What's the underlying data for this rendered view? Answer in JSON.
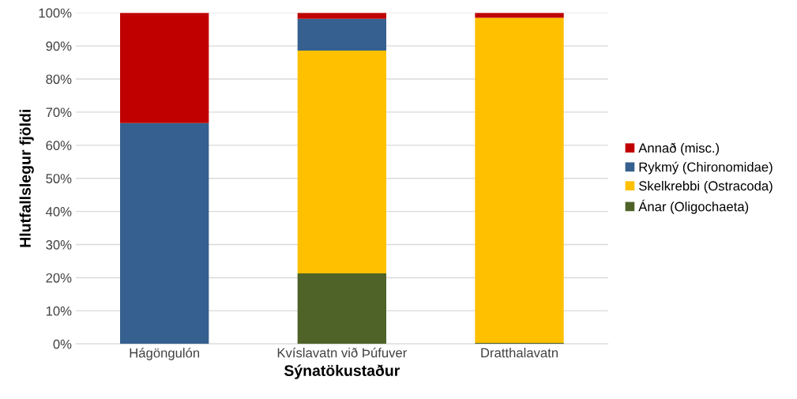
{
  "chart_data": {
    "type": "bar",
    "stacked": true,
    "xlabel": "Sýnatökustaður",
    "ylabel": "Hlutfallslegur fjöldi",
    "categories": [
      "Hágöngulón",
      "Kvíslavatn við Þúfuver",
      "Dratthalavatn"
    ],
    "series": [
      {
        "name": "Ánar (Oligochaeta)",
        "color": "#4f6228",
        "values": [
          0,
          21.3,
          0.3
        ]
      },
      {
        "name": "Skelkrebbi (Ostracoda)",
        "color": "#ffc000",
        "values": [
          0,
          67.3,
          98.2
        ]
      },
      {
        "name": "Rykmý (Chironomidae)",
        "color": "#35608f",
        "values": [
          66.7,
          9.6,
          null
        ]
      },
      {
        "name": "Annað (misc.)",
        "color": "#c00000",
        "values": [
          33.3,
          1.8,
          1.5
        ]
      }
    ],
    "ylim": [
      0,
      100
    ],
    "yticks": [
      {
        "value": 0,
        "label": "0%"
      },
      {
        "value": 10,
        "label": "10%"
      },
      {
        "value": 20,
        "label": "20%"
      },
      {
        "value": 30,
        "label": "30%"
      },
      {
        "value": 40,
        "label": "40%"
      },
      {
        "value": 50,
        "label": "50%"
      },
      {
        "value": 60,
        "label": "60%"
      },
      {
        "value": 70,
        "label": "70%"
      },
      {
        "value": 80,
        "label": "80%"
      },
      {
        "value": 90,
        "label": "90%"
      },
      {
        "value": 100,
        "label": "100%"
      }
    ],
    "grid": "y",
    "legend": "right"
  }
}
